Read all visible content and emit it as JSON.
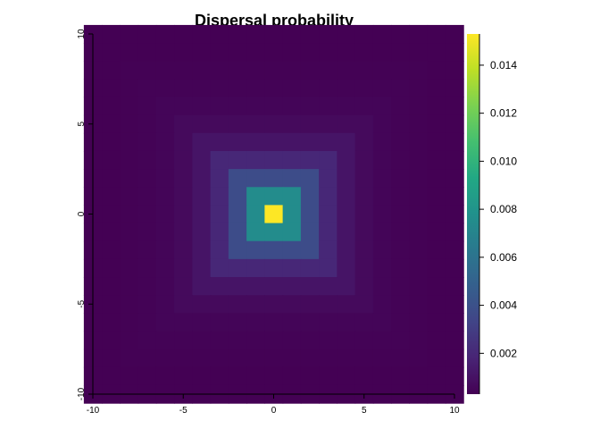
{
  "chart_data": {
    "type": "heatmap",
    "title": "Dispersal probability",
    "xlim": [
      -10,
      10
    ],
    "ylim": [
      -10,
      10
    ],
    "x_ticks": [
      -10,
      -5,
      0,
      5,
      10
    ],
    "y_ticks": [
      -10,
      -5,
      0,
      5,
      10
    ],
    "x_tick_labels": [
      "-10",
      "-5",
      "0",
      "5",
      "10"
    ],
    "y_tick_labels": [
      "-10",
      "-5",
      "0",
      "5",
      "10"
    ],
    "grid_cells": 21,
    "cell_size": 1,
    "kernel": "exponential of Chebyshev distance from origin",
    "center_value": 0.0153,
    "decay_per_cell": 0.48,
    "floor_value": 0.0003,
    "colorscale": "viridis",
    "value_range": [
      0.0003,
      0.0153
    ],
    "colorbar_ticks": [
      0.002,
      0.004,
      0.006,
      0.008,
      0.01,
      0.012,
      0.014
    ],
    "colorbar_tick_labels": [
      "0.002",
      "0.004",
      "0.006",
      "0.008",
      "0.010",
      "0.012",
      "0.014"
    ],
    "grid": false,
    "legend": "right"
  }
}
